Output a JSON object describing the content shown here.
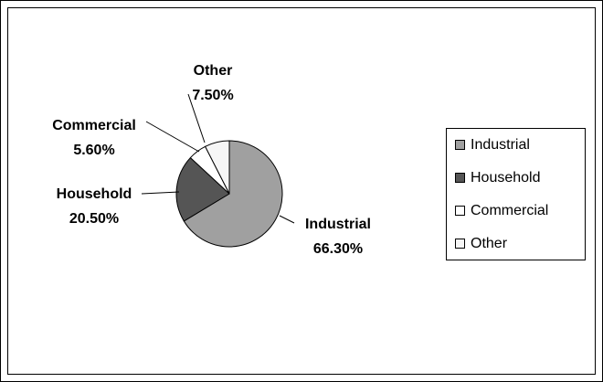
{
  "chart_data": {
    "type": "pie",
    "categories": [
      "Industrial",
      "Household",
      "Commercial",
      "Other"
    ],
    "values": [
      66.3,
      20.5,
      5.6,
      7.5
    ],
    "value_labels": [
      "66.30%",
      "20.50%",
      "5.60%",
      "7.50%"
    ],
    "colors": [
      "#a0a0a0",
      "#555555",
      "#ffffff",
      "#f6f6f6"
    ],
    "legend": "right"
  }
}
